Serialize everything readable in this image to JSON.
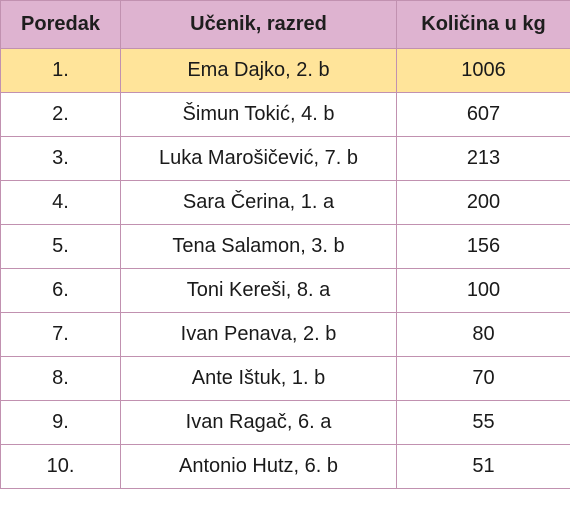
{
  "table": {
    "headers": [
      "Poredak",
      "Učenik, razred",
      "Količina u kg"
    ],
    "rows": [
      {
        "rank": "1.",
        "student": "Ema Dajko, 2. b",
        "amount": "1006"
      },
      {
        "rank": "2.",
        "student": "Šimun Tokić, 4. b",
        "amount": "607"
      },
      {
        "rank": "3.",
        "student": "Luka Marošičević, 7. b",
        "amount": "213"
      },
      {
        "rank": "4.",
        "student": "Sara Čerina, 1. a",
        "amount": "200"
      },
      {
        "rank": "5.",
        "student": "Tena Salamon, 3. b",
        "amount": "156"
      },
      {
        "rank": "6.",
        "student": "Toni Kereši, 8. a",
        "amount": "100"
      },
      {
        "rank": "7.",
        "student": "Ivan Penava, 2. b",
        "amount": "80"
      },
      {
        "rank": "8.",
        "student": "Ante Ištuk, 1. b",
        "amount": "70"
      },
      {
        "rank": "9.",
        "student": "Ivan Ragač, 6. a",
        "amount": "55"
      },
      {
        "rank": "10.",
        "student": "Antonio Hutz, 6. b",
        "amount": "51"
      }
    ],
    "colors": {
      "header_bg": "#deb3d0",
      "highlight_bg": "#ffe49a",
      "border": "#c191b0"
    }
  }
}
